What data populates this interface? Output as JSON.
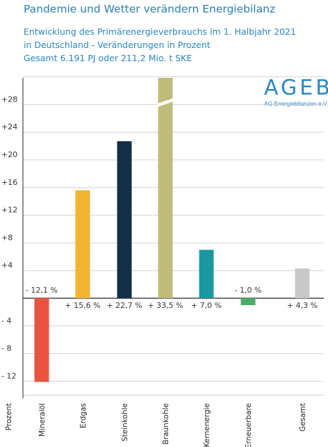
{
  "header": {
    "title": "Pandemie und Wetter verändern Energiebilanz",
    "subtitle_line1": "Entwicklung des Primärenergieverbrauchs im 1. Halbjahr 2021",
    "subtitle_line2": "in Deutschland - Veränderungen in Prozent",
    "subtitle_line3": "Gesamt 6.191 PJ oder 211,2 Mio. t SKE"
  },
  "logo": {
    "text": "AGEB",
    "subtitle": "AG Energiebilanzen e.V."
  },
  "colors": {
    "accent": "#2a86c2",
    "grid": "#c9c9c9",
    "axis": "#222222"
  },
  "chart_data": {
    "type": "bar",
    "ylabel": "Prozent",
    "ylim": [
      -14,
      32
    ],
    "grid": true,
    "yticks": [
      {
        "v": 28,
        "label": "+28"
      },
      {
        "v": 24,
        "label": "+24"
      },
      {
        "v": 20,
        "label": "+20"
      },
      {
        "v": 16,
        "label": "+16"
      },
      {
        "v": 12,
        "label": "+12"
      },
      {
        "v": 8,
        "label": "+8"
      },
      {
        "v": 4,
        "label": "+4"
      },
      {
        "v": -4,
        "label": "- 4"
      },
      {
        "v": -8,
        "label": "- 8"
      },
      {
        "v": -12,
        "label": "- 12"
      }
    ],
    "categories": [
      "Mineralöl",
      "Erdgas",
      "Steinkohle",
      "Braunkohle",
      "Kernenergie",
      "Erneuerbare",
      "Gesamt"
    ],
    "values": [
      -12.1,
      15.6,
      22.7,
      33.5,
      7.0,
      -1.0,
      4.3
    ],
    "value_labels": [
      "- 12,1 %",
      "+ 15,6 %",
      "+ 22,7 %",
      "+ 33,5 %",
      "+ 7,0 %",
      "- 1,0 %",
      "+ 4,3 %"
    ],
    "bar_colors": [
      "#e8543f",
      "#f2b431",
      "#123047",
      "#bfbb7a",
      "#1b97a0",
      "#4bab6a",
      "#c8c8c8"
    ],
    "axis_break": "Braunkohle"
  }
}
